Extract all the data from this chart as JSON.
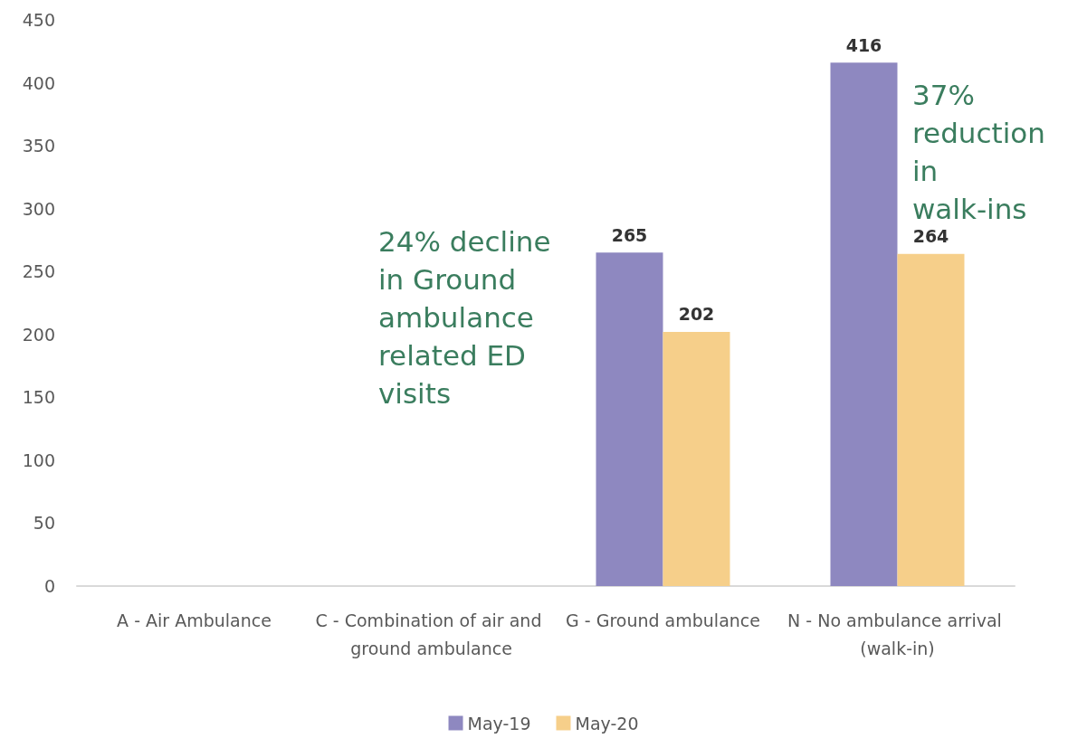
{
  "chart_data": {
    "type": "bar",
    "categories": [
      "A - Air Ambulance",
      "C - Combination of air and ground ambulance",
      "G - Ground ambulance",
      "N - No ambulance arrival (walk-in)"
    ],
    "series": [
      {
        "name": "May-19",
        "color": "#8e88c0",
        "values": [
          null,
          null,
          265,
          416
        ]
      },
      {
        "name": "May-20",
        "color": "#f6cf8a",
        "values": [
          null,
          null,
          202,
          264
        ]
      }
    ],
    "ylim": [
      0,
      450
    ],
    "yticks": [
      0,
      50,
      100,
      150,
      200,
      250,
      300,
      350,
      400,
      450
    ],
    "grid": false,
    "legend": "bottom",
    "data_labels": true,
    "annotations": [
      "24% decline in Ground ambulance related ED visits",
      "37% reduction in walk-ins"
    ]
  }
}
